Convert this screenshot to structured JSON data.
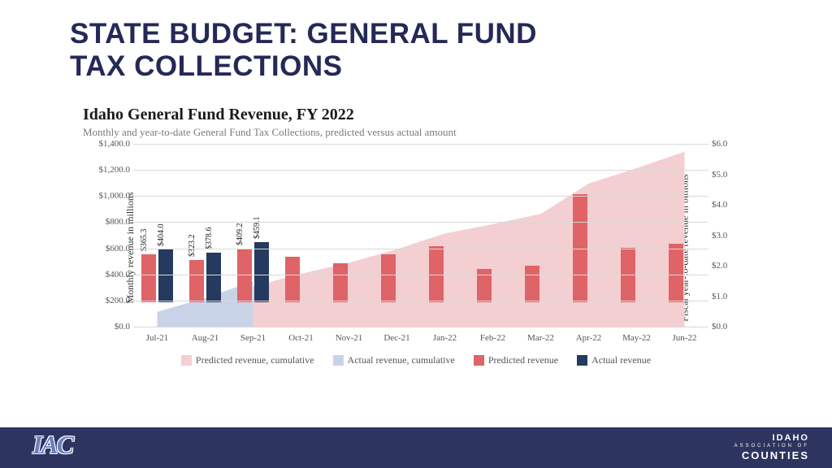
{
  "title_line1": "STATE BUDGET: GENERAL FUND",
  "title_line2": "TAX COLLECTIONS",
  "chart": {
    "title": "Idaho General Fund Revenue, FY 2022",
    "subtitle": "Monthly and year-to-date General Fund Tax Collections, predicted versus actual amount",
    "axis_left_label": "Monthly revenue in millions",
    "axis_right_label": "Fiscal year-to-date revenue in billions",
    "title_fontsize": 20,
    "subtitle_fontsize": 13,
    "categories": [
      "Jul-21",
      "Aug-21",
      "Sep-21",
      "Oct-21",
      "Nov-21",
      "Dec-21",
      "Jan-22",
      "Feb-22",
      "Mar-22",
      "Apr-22",
      "May-22",
      "Jun-22"
    ],
    "predicted_revenue": [
      365.3,
      323.2,
      409.2,
      350,
      300,
      370,
      430,
      255,
      280,
      830,
      420,
      450
    ],
    "actual_revenue": [
      404.0,
      378.6,
      459.1,
      null,
      null,
      null,
      null,
      null,
      null,
      null,
      null,
      null
    ],
    "predicted_cumulative": [
      365.3,
      688.5,
      1097.7,
      1447.7,
      1747.7,
      2117.7,
      2547.7,
      2802.7,
      3082.7,
      3912.7,
      4332.7,
      4782.7
    ],
    "actual_cumulative": [
      404.0,
      782.6,
      1241.7,
      null,
      null,
      null,
      null,
      null,
      null,
      null,
      null,
      null
    ],
    "data_labels": [
      [
        "$365.3",
        "$404.0"
      ],
      [
        "$323.2",
        "$378.6"
      ],
      [
        "$409.2",
        "$459.1"
      ]
    ],
    "ylim_left": [
      0,
      1400
    ],
    "ytick_left_step": 200,
    "ylim_right": [
      0,
      6
    ],
    "ytick_right_step": 1,
    "colors": {
      "predicted_cumulative": "#f4cfd1",
      "actual_cumulative": "#c9d3e8",
      "predicted_revenue": "#e06367",
      "actual_revenue": "#253a5e",
      "grid": "#d8d8d8",
      "background": "#ffffff"
    },
    "bar_width": 0.32,
    "legend": [
      "Predicted revenue, cumulative",
      "Actual revenue, cumulative",
      "Predicted revenue",
      "Actual revenue"
    ]
  },
  "footer": {
    "logo": "IAC",
    "brand_line1": "IDAHO",
    "brand_line2": "ASSOCIATION OF",
    "brand_line3": "COUNTIES",
    "bg": "#2d345f"
  }
}
